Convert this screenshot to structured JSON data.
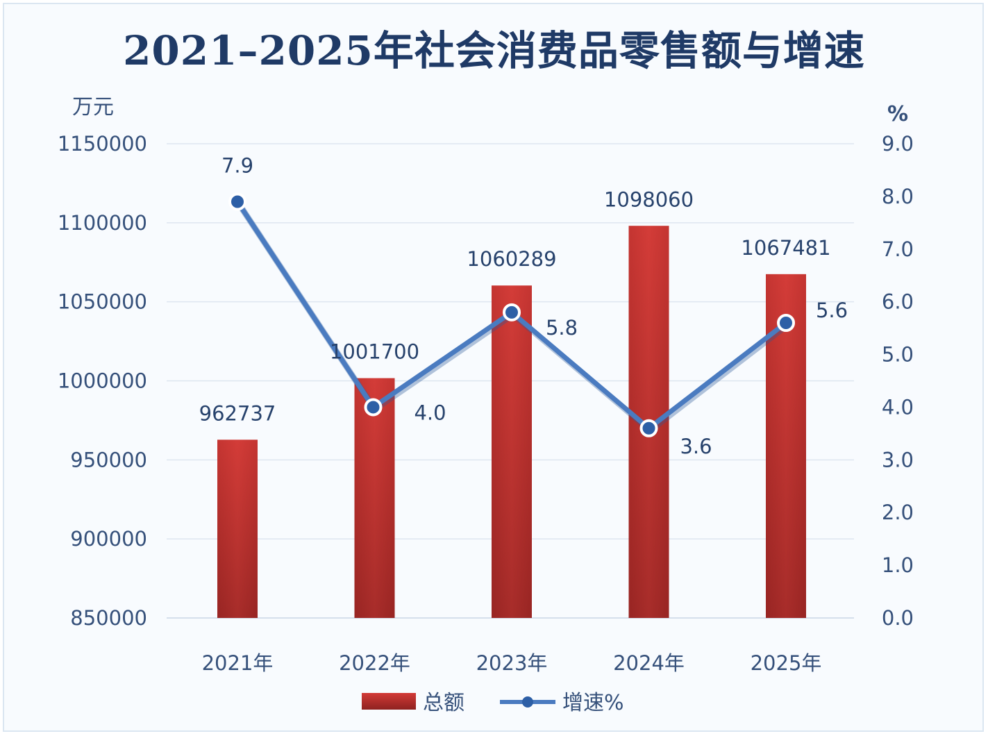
{
  "title": "2021–2025年社会消费品零售额与增速",
  "chart_data": {
    "type": "bar",
    "categories": [
      "2021年",
      "2022年",
      "2023年",
      "2024年",
      "2025年"
    ],
    "series": [
      {
        "name": "总额",
        "type": "bar",
        "axis": "left",
        "values": [
          962737,
          1001700,
          1060289,
          1098060,
          1067481
        ],
        "labels": [
          "962737",
          "1001700",
          "1060289",
          "1098060",
          "1067481"
        ],
        "color": "#c0302e"
      },
      {
        "name": "增速%",
        "type": "line",
        "axis": "right",
        "values": [
          7.9,
          4.0,
          5.8,
          3.6,
          5.6
        ],
        "labels": [
          "7.9",
          "4.0",
          "5.8",
          "3.6",
          "5.6"
        ],
        "color": "#4a7bc0"
      }
    ],
    "left_axis": {
      "unit": "万元",
      "range": [
        850000,
        1150000
      ],
      "ticks": [
        "850000",
        "900000",
        "950000",
        "1000000",
        "1050000",
        "1100000",
        "1150000"
      ]
    },
    "right_axis": {
      "unit": "%",
      "range": [
        0,
        9
      ],
      "ticks": [
        "0.0",
        "1.0",
        "2.0",
        "3.0",
        "4.0",
        "5.0",
        "6.0",
        "7.0",
        "8.0",
        "9.0"
      ]
    },
    "grid": true,
    "legend_position": "bottom"
  }
}
